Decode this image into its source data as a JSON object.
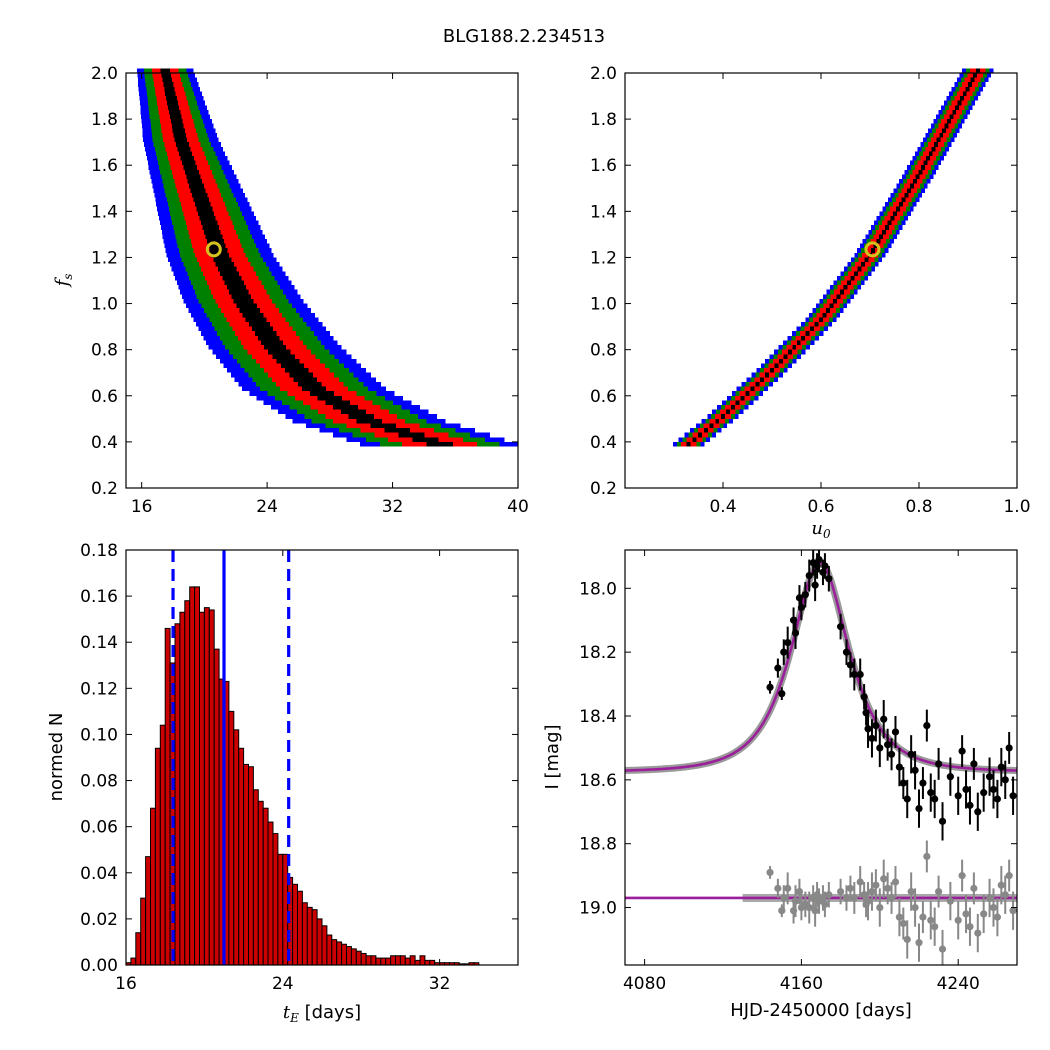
{
  "figure": {
    "title": "BLG188.2.234513"
  },
  "chart_data": [
    {
      "id": "fs_vs_tE",
      "type": "heatmap",
      "xlabel": "",
      "ylabel": "f_s",
      "xlim": [
        15,
        40
      ],
      "ylim": [
        0.2,
        2.0
      ],
      "xticks": [
        16,
        24,
        32,
        40
      ],
      "yticks": [
        0.2,
        0.4,
        0.6,
        0.8,
        1.0,
        1.2,
        1.4,
        1.6,
        1.8,
        2.0
      ],
      "levels": [
        {
          "name": "outer",
          "color": "#0000ff",
          "half_width": 1.8
        },
        {
          "name": "3sigma",
          "color": "#008000",
          "half_width": 1.35
        },
        {
          "name": "2sigma",
          "color": "#ff0000",
          "half_width": 0.85
        },
        {
          "name": "1sigma",
          "color": "#000000",
          "half_width": 0.3
        }
      ],
      "ridge": [
        [
          17.5,
          2.0
        ],
        [
          18.5,
          1.7
        ],
        [
          20.0,
          1.4
        ],
        [
          21.0,
          1.2
        ],
        [
          22.5,
          1.0
        ],
        [
          24.5,
          0.8
        ],
        [
          27.0,
          0.62
        ],
        [
          30.5,
          0.48
        ],
        [
          35.0,
          0.38
        ]
      ],
      "best_fit": {
        "x": 20.6,
        "y": 1.235,
        "color": "#d4c21f"
      }
    },
    {
      "id": "fs_vs_u0",
      "type": "heatmap",
      "xlabel": "u_0",
      "ylabel": "",
      "xlim": [
        0.2,
        1.0
      ],
      "ylim": [
        0.2,
        2.0
      ],
      "xticks": [
        0.4,
        0.6,
        0.8,
        1.0
      ],
      "yticks": [
        0.2,
        0.4,
        0.6,
        0.8,
        1.0,
        1.2,
        1.4,
        1.6,
        1.8,
        2.0
      ],
      "levels": [
        {
          "name": "outer",
          "color": "#0000ff",
          "half_width": 0.032
        },
        {
          "name": "3sigma",
          "color": "#008000",
          "half_width": 0.024
        },
        {
          "name": "2sigma",
          "color": "#ff0000",
          "half_width": 0.016
        },
        {
          "name": "1sigma",
          "color": "#000000",
          "half_width": 0.004
        }
      ],
      "ridge": [
        [
          0.33,
          0.38
        ],
        [
          0.4,
          0.5
        ],
        [
          0.5,
          0.7
        ],
        [
          0.6,
          0.92
        ],
        [
          0.7,
          1.2
        ],
        [
          0.8,
          1.55
        ],
        [
          0.92,
          2.0
        ]
      ],
      "best_fit": {
        "x": 0.705,
        "y": 1.235,
        "color": "#d4c21f"
      }
    },
    {
      "id": "tE_histogram",
      "type": "bar",
      "xlabel": "t_E [days]",
      "ylabel": "normed N",
      "xlim": [
        16,
        36
      ],
      "ylim": [
        0,
        0.18
      ],
      "xticks": [
        16,
        24,
        32
      ],
      "yticks": [
        0.0,
        0.02,
        0.04,
        0.06,
        0.08,
        0.1,
        0.12,
        0.14,
        0.16,
        0.18
      ],
      "bin_start": 16.0,
      "bin_width": 0.25,
      "bar_color": "#cc0000",
      "values": [
        0.001,
        0.003,
        0.014,
        0.029,
        0.047,
        0.068,
        0.094,
        0.104,
        0.146,
        0.131,
        0.148,
        0.153,
        0.158,
        0.164,
        0.164,
        0.153,
        0.155,
        0.154,
        0.137,
        0.124,
        0.123,
        0.11,
        0.102,
        0.094,
        0.087,
        0.086,
        0.076,
        0.071,
        0.068,
        0.062,
        0.057,
        0.048,
        0.048,
        0.038,
        0.035,
        0.032,
        0.027,
        0.025,
        0.024,
        0.02,
        0.017,
        0.013,
        0.011,
        0.01,
        0.009,
        0.008,
        0.007,
        0.006,
        0.005,
        0.004,
        0.004,
        0.003,
        0.003,
        0.003,
        0.004,
        0.004,
        0.004,
        0.003,
        0.004,
        0.002,
        0.004,
        0.002,
        0.002,
        0.001,
        0.001,
        0.001,
        0.001,
        0.001,
        0.0005,
        0.0005,
        0.001,
        0.001
      ],
      "vlines": [
        {
          "x": 18.4,
          "style": "dashed",
          "color": "#0000ff"
        },
        {
          "x": 21.0,
          "style": "solid",
          "color": "#0000ff"
        },
        {
          "x": 24.3,
          "style": "dashed",
          "color": "#0000ff"
        }
      ]
    },
    {
      "id": "lightcurve",
      "type": "scatter",
      "xlabel": "HJD-2450000 [days]",
      "ylabel": "I [mag]",
      "xlim": [
        4070,
        4270
      ],
      "ylim": [
        19.18,
        17.88
      ],
      "y_inverted": true,
      "xticks": [
        4080,
        4160,
        4240
      ],
      "yticks": [
        18.0,
        18.2,
        18.4,
        18.6,
        18.8,
        19.0
      ],
      "model": {
        "t0": 4169.5,
        "tE": 21.0,
        "u0": 0.705,
        "fs": 1.235,
        "base_mag": 18.575,
        "color": "#9b1f9b"
      },
      "residual_model": {
        "level": 18.97,
        "color": "#9b1f9b"
      },
      "series": [
        {
          "name": "",
          "color": "#000000",
          "points": [
            [
              4144,
              18.31,
              0.02
            ],
            [
              4148,
              18.25,
              0.03
            ],
            [
              4150,
              18.33,
              0.02
            ],
            [
              4151,
              18.2,
              0.04
            ],
            [
              4153,
              18.17,
              0.05
            ],
            [
              4156,
              18.1,
              0.04
            ],
            [
              4157,
              18.14,
              0.05
            ],
            [
              4159,
              18.03,
              0.04
            ],
            [
              4160,
              18.06,
              0.04
            ],
            [
              4162,
              18.02,
              0.04
            ],
            [
              4164,
              17.96,
              0.05
            ],
            [
              4166,
              17.92,
              0.04
            ],
            [
              4167,
              17.99,
              0.05
            ],
            [
              4168,
              17.93,
              0.04
            ],
            [
              4169,
              17.91,
              0.04
            ],
            [
              4171,
              17.95,
              0.04
            ],
            [
              4172,
              17.93,
              0.04
            ],
            [
              4174,
              17.97,
              0.04
            ],
            [
              4180,
              18.12,
              0.04
            ],
            [
              4183,
              18.2,
              0.04
            ],
            [
              4185,
              18.24,
              0.04
            ],
            [
              4187,
              18.27,
              0.05
            ],
            [
              4190,
              18.27,
              0.05
            ],
            [
              4192,
              18.34,
              0.04
            ],
            [
              4193,
              18.39,
              0.04
            ],
            [
              4194,
              18.44,
              0.06
            ],
            [
              4196,
              18.47,
              0.06
            ],
            [
              4198,
              18.43,
              0.05
            ],
            [
              4200,
              18.5,
              0.06
            ],
            [
              4202,
              18.41,
              0.06
            ],
            [
              4204,
              18.49,
              0.05
            ],
            [
              4206,
              18.52,
              0.05
            ],
            [
              4208,
              18.45,
              0.05
            ],
            [
              4210,
              18.56,
              0.06
            ],
            [
              4212,
              18.61,
              0.05
            ],
            [
              4214,
              18.66,
              0.06
            ],
            [
              4216,
              18.52,
              0.06
            ],
            [
              4218,
              18.57,
              0.06
            ],
            [
              4220,
              18.69,
              0.06
            ],
            [
              4222,
              18.61,
              0.05
            ],
            [
              4224,
              18.43,
              0.05
            ],
            [
              4226,
              18.64,
              0.06
            ],
            [
              4228,
              18.66,
              0.06
            ],
            [
              4230,
              18.55,
              0.05
            ],
            [
              4232,
              18.73,
              0.06
            ],
            [
              4236,
              18.59,
              0.06
            ],
            [
              4240,
              18.65,
              0.06
            ],
            [
              4242,
              18.51,
              0.05
            ],
            [
              4244,
              18.63,
              0.06
            ],
            [
              4246,
              18.68,
              0.06
            ],
            [
              4248,
              18.55,
              0.05
            ],
            [
              4250,
              18.7,
              0.06
            ],
            [
              4253,
              18.64,
              0.06
            ],
            [
              4256,
              18.59,
              0.06
            ],
            [
              4258,
              18.63,
              0.06
            ],
            [
              4260,
              18.66,
              0.06
            ],
            [
              4262,
              18.56,
              0.06
            ],
            [
              4264,
              18.6,
              0.06
            ],
            [
              4266,
              18.5,
              0.05
            ],
            [
              4268,
              18.65,
              0.06
            ]
          ]
        },
        {
          "name": "",
          "color": "#888888",
          "points": [
            [
              4144,
              18.89,
              0.02
            ],
            [
              4148,
              18.94,
              0.03
            ],
            [
              4150,
              19.01,
              0.02
            ],
            [
              4151,
              18.97,
              0.04
            ],
            [
              4153,
              18.94,
              0.05
            ],
            [
              4156,
              19.01,
              0.04
            ],
            [
              4157,
              18.98,
              0.05
            ],
            [
              4159,
              18.95,
              0.04
            ],
            [
              4160,
              19.0,
              0.04
            ],
            [
              4162,
              18.99,
              0.04
            ],
            [
              4164,
              19.0,
              0.05
            ],
            [
              4166,
              18.97,
              0.04
            ],
            [
              4167,
              19.01,
              0.05
            ],
            [
              4168,
              18.96,
              0.04
            ],
            [
              4169,
              18.98,
              0.04
            ],
            [
              4171,
              18.97,
              0.04
            ],
            [
              4172,
              18.99,
              0.04
            ],
            [
              4174,
              18.96,
              0.04
            ],
            [
              4180,
              18.95,
              0.04
            ],
            [
              4183,
              18.97,
              0.04
            ],
            [
              4185,
              18.94,
              0.04
            ],
            [
              4187,
              18.97,
              0.05
            ],
            [
              4190,
              18.92,
              0.05
            ],
            [
              4192,
              18.96,
              0.04
            ],
            [
              4193,
              18.99,
              0.04
            ],
            [
              4194,
              18.98,
              0.06
            ],
            [
              4196,
              18.95,
              0.06
            ],
            [
              4198,
              18.93,
              0.05
            ],
            [
              4200,
              19.0,
              0.06
            ],
            [
              4202,
              18.91,
              0.06
            ],
            [
              4204,
              18.94,
              0.05
            ],
            [
              4206,
              18.97,
              0.05
            ],
            [
              4208,
              18.92,
              0.05
            ],
            [
              4210,
              19.03,
              0.06
            ],
            [
              4212,
              19.05,
              0.05
            ],
            [
              4214,
              19.1,
              0.06
            ],
            [
              4216,
              18.95,
              0.06
            ],
            [
              4218,
              19.0,
              0.06
            ],
            [
              4220,
              19.11,
              0.06
            ],
            [
              4222,
              19.03,
              0.05
            ],
            [
              4224,
              18.84,
              0.05
            ],
            [
              4226,
              19.04,
              0.06
            ],
            [
              4228,
              19.06,
              0.06
            ],
            [
              4230,
              18.95,
              0.05
            ],
            [
              4232,
              19.13,
              0.06
            ],
            [
              4236,
              18.98,
              0.06
            ],
            [
              4240,
              19.04,
              0.06
            ],
            [
              4242,
              18.9,
              0.05
            ],
            [
              4244,
              19.02,
              0.06
            ],
            [
              4246,
              19.06,
              0.06
            ],
            [
              4248,
              18.94,
              0.05
            ],
            [
              4250,
              19.08,
              0.06
            ],
            [
              4253,
              19.02,
              0.06
            ],
            [
              4256,
              18.97,
              0.06
            ],
            [
              4258,
              19.0,
              0.06
            ],
            [
              4260,
              19.03,
              0.06
            ],
            [
              4262,
              18.93,
              0.06
            ],
            [
              4264,
              18.96,
              0.06
            ],
            [
              4266,
              18.9,
              0.05
            ],
            [
              4268,
              19.01,
              0.06
            ]
          ]
        }
      ]
    }
  ]
}
